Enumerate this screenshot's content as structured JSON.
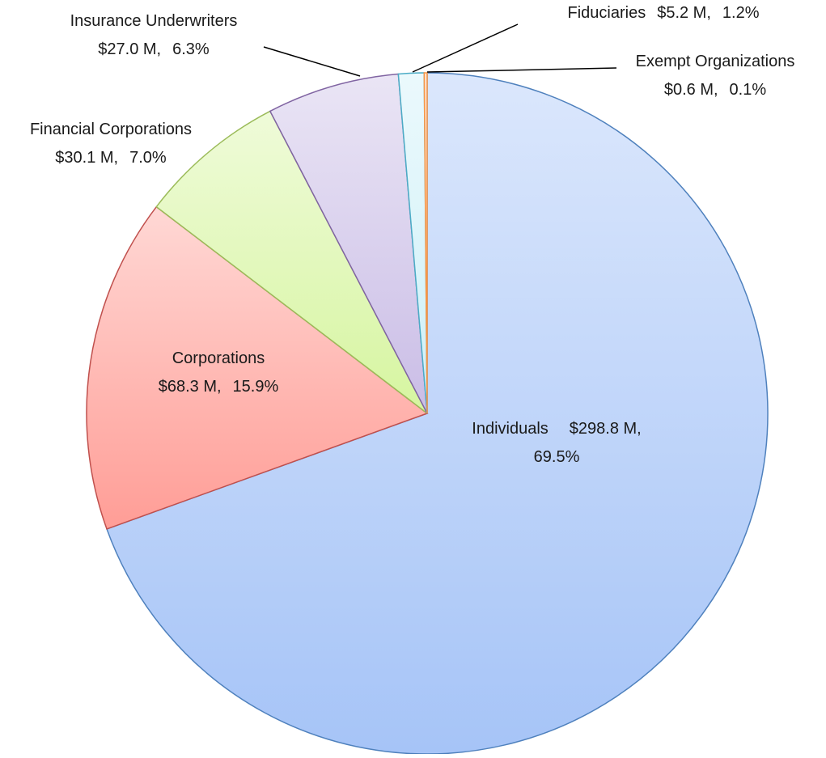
{
  "chart_data": {
    "type": "pie",
    "categories": [
      "Individuals",
      "Corporations",
      "Financial Corporations",
      "Insurance Underwriters",
      "Fiduciaries",
      "Exempt Organizations"
    ],
    "values": [
      298.8,
      68.3,
      30.1,
      27.0,
      5.2,
      0.6
    ],
    "value_labels": [
      "$298.8 M,",
      "$68.3 M,",
      "$30.1 M,",
      "$27.0 M,",
      "$5.2 M,",
      "$0.6 M,"
    ],
    "percentages": [
      69.5,
      15.9,
      7.0,
      6.3,
      1.2,
      0.1
    ],
    "percentage_labels": [
      "69.5%",
      "15.9%",
      "7.0%",
      "6.3%",
      "1.2%",
      "0.1%"
    ],
    "colors": [
      "#a6c4f7",
      "#ff9d96",
      "#d6f5a0",
      "#cabde6",
      "#cdf0f8",
      "#f9b98a"
    ],
    "edge_colors": [
      "#4f81bd",
      "#c0504d",
      "#9bbb59",
      "#8064a2",
      "#4bacc6",
      "#f79646"
    ]
  }
}
